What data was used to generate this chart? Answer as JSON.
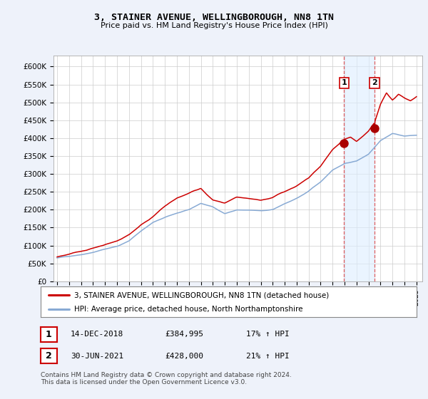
{
  "title": "3, STAINER AVENUE, WELLINGBOROUGH, NN8 1TN",
  "subtitle": "Price paid vs. HM Land Registry's House Price Index (HPI)",
  "ylabel_ticks": [
    "£0",
    "£50K",
    "£100K",
    "£150K",
    "£200K",
    "£250K",
    "£300K",
    "£350K",
    "£400K",
    "£450K",
    "£500K",
    "£550K",
    "£600K"
  ],
  "ytick_values": [
    0,
    50000,
    100000,
    150000,
    200000,
    250000,
    300000,
    350000,
    400000,
    450000,
    500000,
    550000,
    600000
  ],
  "ylim": [
    0,
    630000
  ],
  "xlim_start": 1994.7,
  "xlim_end": 2025.5,
  "bg_color": "#eef2fa",
  "plot_bg_color": "#ffffff",
  "grid_color": "#cccccc",
  "sale1_x": 2018.96,
  "sale1_y": 384995,
  "sale2_x": 2021.5,
  "sale2_y": 428000,
  "sale1_label": "14-DEC-2018",
  "sale1_price": "£384,995",
  "sale1_hpi": "17% ↑ HPI",
  "sale2_label": "30-JUN-2021",
  "sale2_price": "£428,000",
  "sale2_hpi": "21% ↑ HPI",
  "legend_line1": "3, STAINER AVENUE, WELLINGBOROUGH, NN8 1TN (detached house)",
  "legend_line2": "HPI: Average price, detached house, North Northamptonshire",
  "footnote": "Contains HM Land Registry data © Crown copyright and database right 2024.\nThis data is licensed under the Open Government Licence v3.0.",
  "line_red_color": "#cc0000",
  "line_blue_color": "#88aad4",
  "shade_color": "#ddeeff",
  "marker_color": "#aa0000"
}
